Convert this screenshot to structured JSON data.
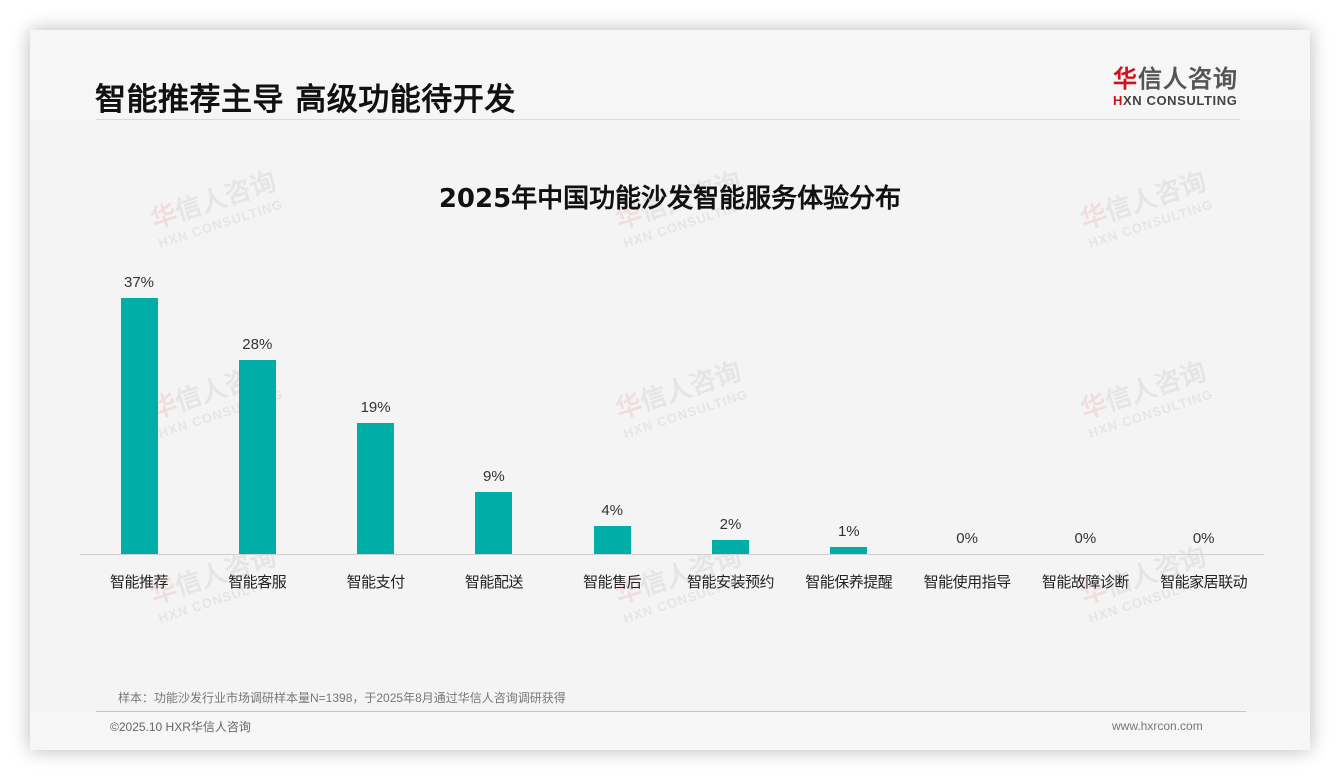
{
  "header": {
    "title": "智能推荐主导 高级功能待开发",
    "logo": {
      "cn_accent": "华",
      "cn_rest": "信人咨询",
      "en_accent": "H",
      "en_rest": "XN CONSULTING"
    }
  },
  "watermark": {
    "cn_accent": "华",
    "cn_rest": "信人咨询",
    "en": "HXN CONSULTING"
  },
  "chart": {
    "title": "2025年中国功能沙发智能服务体验分布",
    "bars": [
      {
        "label": "智能推荐",
        "value_label": "37%"
      },
      {
        "label": "智能客服",
        "value_label": "28%"
      },
      {
        "label": "智能支付",
        "value_label": "19%"
      },
      {
        "label": "智能配送",
        "value_label": "9%"
      },
      {
        "label": "智能售后",
        "value_label": "4%"
      },
      {
        "label": "智能安装预约",
        "value_label": "2%"
      },
      {
        "label": "智能保养提醒",
        "value_label": "1%"
      },
      {
        "label": "智能使用指导",
        "value_label": "0%"
      },
      {
        "label": "智能故障诊断",
        "value_label": "0%"
      },
      {
        "label": "智能家居联动",
        "value_label": "0%"
      }
    ],
    "bar_color": "#00aea7"
  },
  "chart_data": {
    "type": "bar",
    "title": "2025年中国功能沙发智能服务体验分布",
    "categories": [
      "智能推荐",
      "智能客服",
      "智能支付",
      "智能配送",
      "智能售后",
      "智能安装预约",
      "智能保养提醒",
      "智能使用指导",
      "智能故障诊断",
      "智能家居联动"
    ],
    "values": [
      37,
      28,
      19,
      9,
      4,
      2,
      1,
      0,
      0,
      0
    ],
    "unit": "%",
    "xlabel": "",
    "ylabel": "",
    "ylim": [
      0,
      40
    ],
    "grid": false,
    "legend": "none",
    "data_labels": true
  },
  "footer": {
    "note": "样本：功能沙发行业市场调研样本量N=1398，于2025年8月通过华信人咨询调研获得",
    "copyright": "©2025.10 HXR华信人咨询",
    "website": "www.hxrcon.com"
  }
}
